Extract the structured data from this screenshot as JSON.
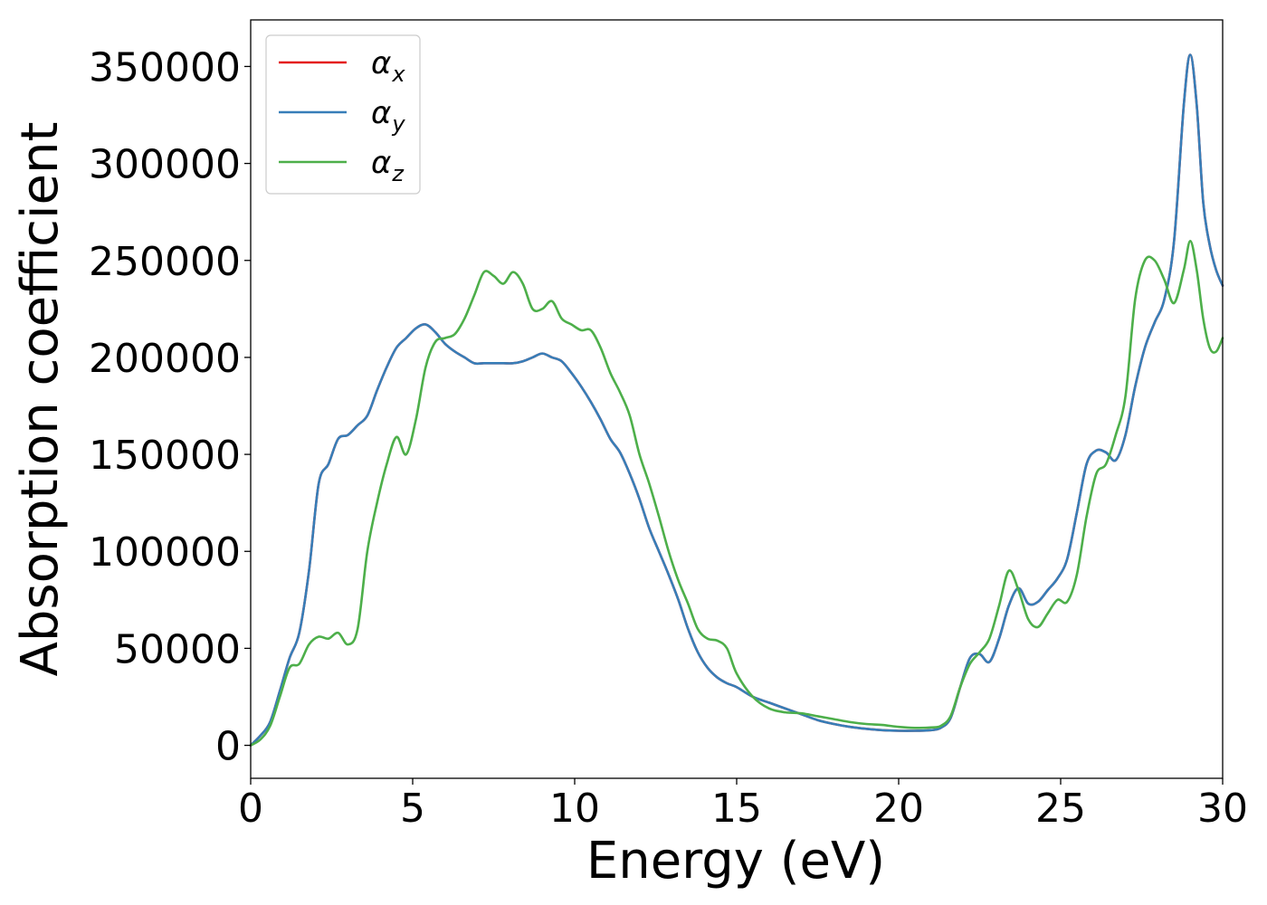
{
  "chart_data": {
    "type": "line",
    "xlabel": "Energy (eV)",
    "ylabel": "Absorption coefficient",
    "xlim": [
      0,
      30
    ],
    "ylim": [
      -17000,
      374000
    ],
    "x_ticks": [
      0,
      5,
      10,
      15,
      20,
      25,
      30
    ],
    "x_tick_labels": [
      "0",
      "5",
      "10",
      "15",
      "20",
      "25",
      "30"
    ],
    "y_ticks": [
      0,
      50000,
      100000,
      150000,
      200000,
      250000,
      300000,
      350000
    ],
    "y_tick_labels": [
      "0",
      "50000",
      "100000",
      "150000",
      "200000",
      "250000",
      "300000",
      "350000"
    ],
    "grid": false,
    "legend_position": "top-left",
    "series": [
      {
        "name": "αx",
        "symbol": "α",
        "subscript": "x",
        "color": "#e41a1c",
        "x": [
          0,
          0.3,
          0.6,
          0.9,
          1.2,
          1.5,
          1.8,
          2.1,
          2.4,
          2.7,
          3.0,
          3.3,
          3.6,
          3.9,
          4.2,
          4.5,
          4.8,
          5.1,
          5.4,
          5.7,
          6.0,
          6.3,
          6.6,
          6.9,
          7.2,
          7.5,
          7.8,
          8.1,
          8.4,
          8.7,
          9.0,
          9.3,
          9.6,
          9.9,
          10.2,
          10.5,
          10.8,
          11.1,
          11.4,
          11.7,
          12.0,
          12.3,
          12.6,
          12.9,
          13.2,
          13.5,
          13.8,
          14.1,
          14.4,
          14.7,
          15.0,
          15.5,
          16.0,
          16.5,
          17.0,
          17.5,
          18.0,
          18.5,
          19.0,
          19.5,
          20.0,
          20.5,
          21.0,
          21.3,
          21.6,
          21.9,
          22.2,
          22.5,
          22.8,
          23.1,
          23.4,
          23.7,
          24.0,
          24.3,
          24.6,
          24.9,
          25.2,
          25.5,
          25.8,
          26.1,
          26.4,
          26.7,
          27.0,
          27.3,
          27.6,
          27.9,
          28.2,
          28.5,
          28.8,
          29.0,
          29.2,
          29.4,
          29.6,
          29.8,
          30.0
        ],
        "y": [
          0,
          5000,
          12000,
          28000,
          45000,
          58000,
          90000,
          135000,
          145000,
          158000,
          160000,
          165000,
          170000,
          183000,
          195000,
          205000,
          210000,
          215000,
          217000,
          213000,
          207000,
          203000,
          200000,
          197000,
          197000,
          197000,
          197000,
          197000,
          198000,
          200000,
          202000,
          200000,
          198000,
          192000,
          185000,
          177000,
          168000,
          158000,
          151000,
          140000,
          127000,
          112000,
          100000,
          88000,
          75000,
          60000,
          48000,
          40000,
          35000,
          32000,
          30000,
          25000,
          22000,
          19000,
          16000,
          13000,
          11000,
          9500,
          8500,
          7800,
          7500,
          7500,
          7800,
          9000,
          14000,
          30000,
          45000,
          47000,
          43000,
          55000,
          72000,
          81000,
          73000,
          74000,
          80000,
          86000,
          96000,
          120000,
          145000,
          152000,
          151000,
          147000,
          160000,
          185000,
          205000,
          218000,
          230000,
          260000,
          330000,
          356000,
          330000,
          280000,
          258000,
          245000,
          237000
        ]
      },
      {
        "name": "αy",
        "symbol": "α",
        "subscript": "y",
        "color": "#377eb8",
        "x": [
          0,
          0.3,
          0.6,
          0.9,
          1.2,
          1.5,
          1.8,
          2.1,
          2.4,
          2.7,
          3.0,
          3.3,
          3.6,
          3.9,
          4.2,
          4.5,
          4.8,
          5.1,
          5.4,
          5.7,
          6.0,
          6.3,
          6.6,
          6.9,
          7.2,
          7.5,
          7.8,
          8.1,
          8.4,
          8.7,
          9.0,
          9.3,
          9.6,
          9.9,
          10.2,
          10.5,
          10.8,
          11.1,
          11.4,
          11.7,
          12.0,
          12.3,
          12.6,
          12.9,
          13.2,
          13.5,
          13.8,
          14.1,
          14.4,
          14.7,
          15.0,
          15.5,
          16.0,
          16.5,
          17.0,
          17.5,
          18.0,
          18.5,
          19.0,
          19.5,
          20.0,
          20.5,
          21.0,
          21.3,
          21.6,
          21.9,
          22.2,
          22.5,
          22.8,
          23.1,
          23.4,
          23.7,
          24.0,
          24.3,
          24.6,
          24.9,
          25.2,
          25.5,
          25.8,
          26.1,
          26.4,
          26.7,
          27.0,
          27.3,
          27.6,
          27.9,
          28.2,
          28.5,
          28.8,
          29.0,
          29.2,
          29.4,
          29.6,
          29.8,
          30.0
        ],
        "y": [
          0,
          5000,
          12000,
          28000,
          45000,
          58000,
          90000,
          135000,
          145000,
          158000,
          160000,
          165000,
          170000,
          183000,
          195000,
          205000,
          210000,
          215000,
          217000,
          213000,
          207000,
          203000,
          200000,
          197000,
          197000,
          197000,
          197000,
          197000,
          198000,
          200000,
          202000,
          200000,
          198000,
          192000,
          185000,
          177000,
          168000,
          158000,
          151000,
          140000,
          127000,
          112000,
          100000,
          88000,
          75000,
          60000,
          48000,
          40000,
          35000,
          32000,
          30000,
          25000,
          22000,
          19000,
          16000,
          13000,
          11000,
          9500,
          8500,
          7800,
          7500,
          7500,
          7800,
          9000,
          14000,
          30000,
          45000,
          47000,
          43000,
          55000,
          72000,
          81000,
          73000,
          74000,
          80000,
          86000,
          96000,
          120000,
          145000,
          152000,
          151000,
          147000,
          160000,
          185000,
          205000,
          218000,
          230000,
          260000,
          330000,
          356000,
          330000,
          280000,
          258000,
          245000,
          237000
        ]
      },
      {
        "name": "αz",
        "symbol": "α",
        "subscript": "z",
        "color": "#4daf4a",
        "x": [
          0,
          0.3,
          0.6,
          0.9,
          1.2,
          1.5,
          1.8,
          2.1,
          2.4,
          2.7,
          3.0,
          3.3,
          3.6,
          3.9,
          4.2,
          4.5,
          4.8,
          5.1,
          5.4,
          5.7,
          6.0,
          6.3,
          6.6,
          6.9,
          7.2,
          7.5,
          7.8,
          8.1,
          8.4,
          8.7,
          9.0,
          9.3,
          9.6,
          9.9,
          10.2,
          10.5,
          10.8,
          11.1,
          11.4,
          11.7,
          12.0,
          12.3,
          12.6,
          12.9,
          13.2,
          13.5,
          13.8,
          14.1,
          14.4,
          14.7,
          15.0,
          15.5,
          16.0,
          16.5,
          17.0,
          17.5,
          18.0,
          18.5,
          19.0,
          19.5,
          20.0,
          20.5,
          21.0,
          21.3,
          21.6,
          21.9,
          22.2,
          22.5,
          22.8,
          23.1,
          23.4,
          23.7,
          24.0,
          24.3,
          24.6,
          24.9,
          25.2,
          25.5,
          25.8,
          26.1,
          26.4,
          26.7,
          27.0,
          27.3,
          27.6,
          27.9,
          28.2,
          28.5,
          28.8,
          29.0,
          29.2,
          29.4,
          29.6,
          29.8,
          30.0
        ],
        "y": [
          0,
          3000,
          10000,
          25000,
          40000,
          42000,
          52000,
          56000,
          55000,
          58000,
          52000,
          60000,
          100000,
          125000,
          145000,
          159000,
          150000,
          168000,
          195000,
          208000,
          210000,
          212000,
          220000,
          232000,
          244000,
          242000,
          238000,
          244000,
          238000,
          225000,
          225000,
          229000,
          220000,
          217000,
          214000,
          214000,
          205000,
          192000,
          182000,
          170000,
          150000,
          135000,
          118000,
          100000,
          85000,
          73000,
          60000,
          55000,
          54000,
          50000,
          37000,
          25000,
          19000,
          17000,
          16500,
          15000,
          13500,
          12000,
          11000,
          10500,
          9500,
          9000,
          9200,
          10000,
          15000,
          30000,
          42000,
          48000,
          55000,
          72000,
          90000,
          80000,
          65000,
          61000,
          68000,
          75000,
          74000,
          88000,
          118000,
          140000,
          145000,
          160000,
          180000,
          230000,
          250000,
          250000,
          240000,
          228000,
          245000,
          260000,
          245000,
          220000,
          205000,
          203000,
          210000
        ]
      }
    ]
  }
}
